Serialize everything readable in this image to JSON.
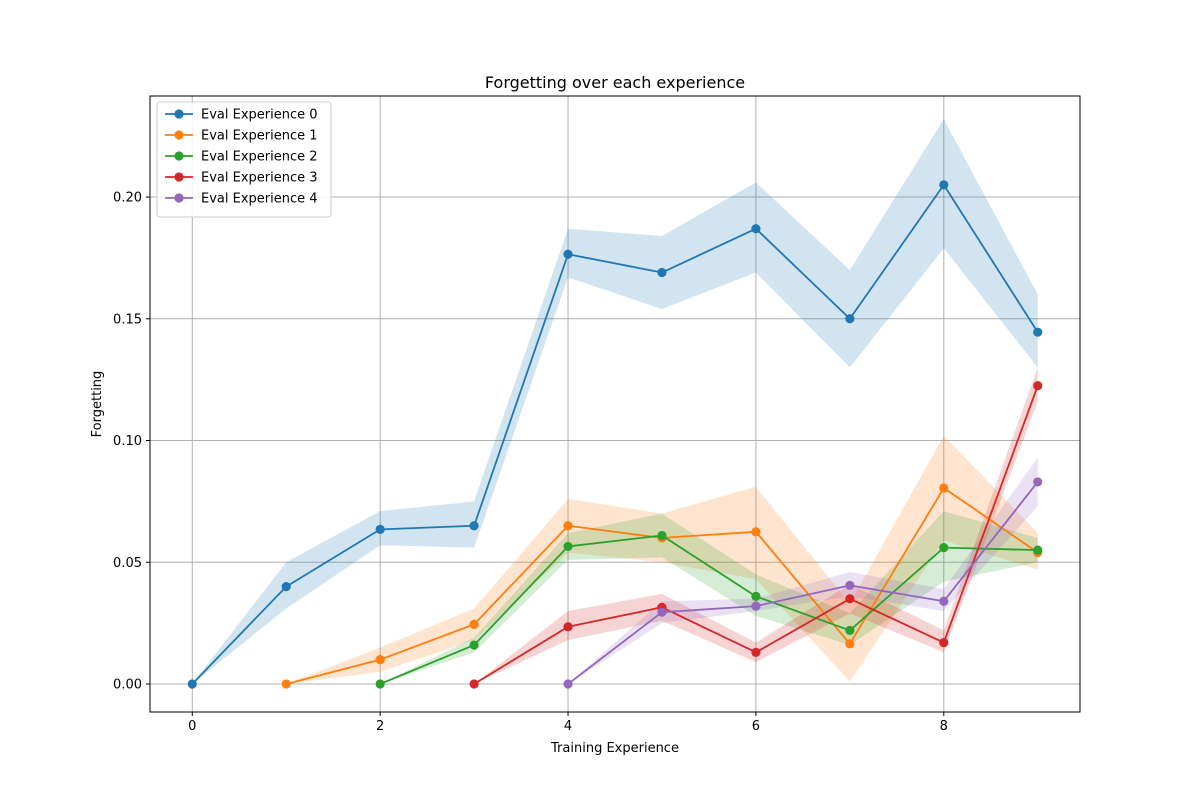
{
  "chart_data": {
    "type": "line",
    "title": "Forgetting over each experience",
    "xlabel": "Training Experience",
    "ylabel": "Forgetting",
    "xlim": [
      -0.45,
      9.45
    ],
    "ylim": [
      -0.0115,
      0.2415
    ],
    "x": [
      0,
      1,
      2,
      3,
      4,
      5,
      6,
      7,
      8,
      9
    ],
    "xticks": [
      0,
      2,
      4,
      6,
      8
    ],
    "xtick_labels": [
      "0",
      "2",
      "4",
      "6",
      "8"
    ],
    "yticks": [
      0.0,
      0.05,
      0.1,
      0.15,
      0.2
    ],
    "ytick_labels": [
      "0.00",
      "0.05",
      "0.10",
      "0.15",
      "0.20"
    ],
    "grid": true,
    "legend_position": "top-left",
    "series": [
      {
        "name": "Eval Experience 0",
        "color": "#1f77b4",
        "x": [
          0,
          1,
          2,
          3,
          4,
          5,
          6,
          7,
          8,
          9
        ],
        "values": [
          0.0,
          0.04,
          0.0635,
          0.065,
          0.1765,
          0.169,
          0.187,
          0.15,
          0.205,
          0.1445
        ],
        "lower": [
          0.0,
          0.031,
          0.057,
          0.056,
          0.167,
          0.154,
          0.169,
          0.13,
          0.179,
          0.13
        ],
        "upper": [
          0.0,
          0.05,
          0.071,
          0.075,
          0.187,
          0.184,
          0.206,
          0.17,
          0.232,
          0.16
        ]
      },
      {
        "name": "Eval Experience 1",
        "color": "#ff7f0e",
        "x": [
          1,
          2,
          3,
          4,
          5,
          6,
          7,
          8,
          9
        ],
        "values": [
          0.0,
          0.01,
          0.0245,
          0.065,
          0.06,
          0.0625,
          0.0165,
          0.0805,
          0.054
        ],
        "lower": [
          0.0,
          0.005,
          0.018,
          0.054,
          0.05,
          0.043,
          0.001,
          0.059,
          0.047
        ],
        "upper": [
          0.0,
          0.015,
          0.031,
          0.076,
          0.07,
          0.081,
          0.033,
          0.102,
          0.062
        ]
      },
      {
        "name": "Eval Experience 2",
        "color": "#2ca02c",
        "x": [
          2,
          3,
          4,
          5,
          6,
          7,
          8,
          9
        ],
        "values": [
          0.0,
          0.016,
          0.0565,
          0.061,
          0.036,
          0.022,
          0.056,
          0.055
        ],
        "lower": [
          0.0,
          0.013,
          0.051,
          0.052,
          0.028,
          0.016,
          0.042,
          0.05
        ],
        "upper": [
          0.0,
          0.019,
          0.062,
          0.07,
          0.045,
          0.029,
          0.071,
          0.06
        ]
      },
      {
        "name": "Eval Experience 3",
        "color": "#d62728",
        "x": [
          3,
          4,
          5,
          6,
          7,
          8,
          9
        ],
        "values": [
          0.0,
          0.0235,
          0.0315,
          0.013,
          0.035,
          0.017,
          0.1225
        ],
        "lower": [
          0.0,
          0.018,
          0.026,
          0.009,
          0.029,
          0.013,
          0.116
        ],
        "upper": [
          0.0,
          0.03,
          0.037,
          0.017,
          0.041,
          0.022,
          0.13
        ]
      },
      {
        "name": "Eval Experience 4",
        "color": "#9467bd",
        "x": [
          4,
          5,
          6,
          7,
          8,
          9
        ],
        "values": [
          0.0,
          0.0295,
          0.032,
          0.0405,
          0.034,
          0.083
        ],
        "lower": [
          0.0,
          0.025,
          0.03,
          0.036,
          0.03,
          0.073
        ],
        "upper": [
          0.0,
          0.034,
          0.035,
          0.046,
          0.039,
          0.093
        ]
      }
    ]
  }
}
